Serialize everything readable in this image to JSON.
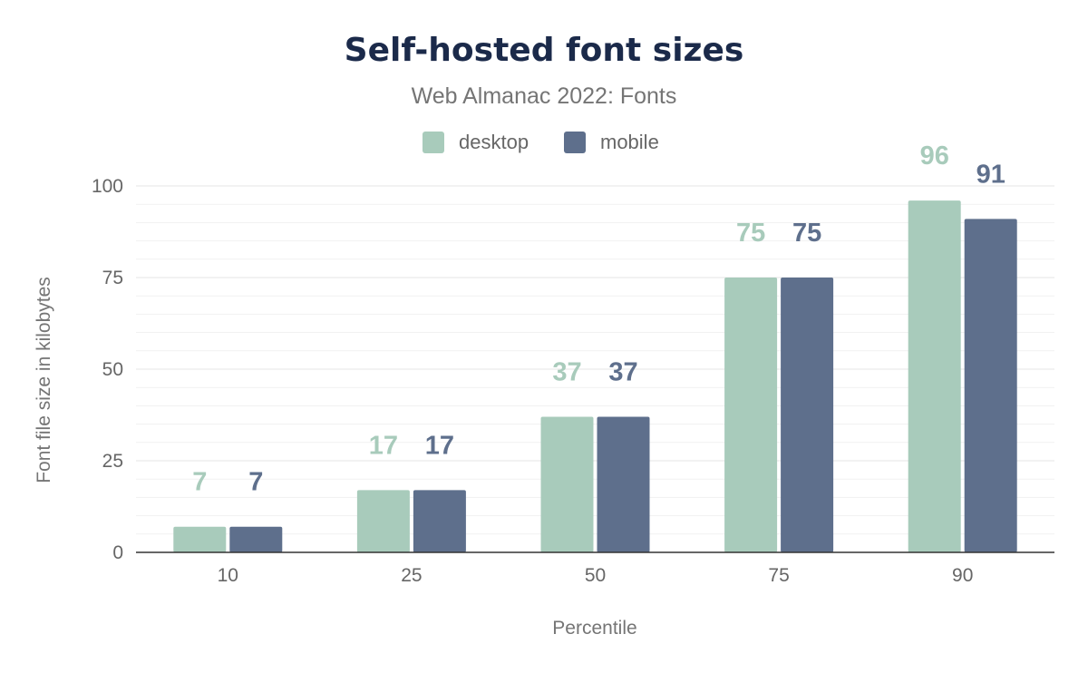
{
  "chart_data": {
    "type": "bar",
    "title": "Self-hosted font sizes",
    "subtitle": "Web Almanac 2022: Fonts",
    "xlabel": "Percentile",
    "ylabel": "Font file size in kilobytes",
    "categories": [
      "10",
      "25",
      "50",
      "75",
      "90"
    ],
    "series": [
      {
        "name": "desktop",
        "color": "#a8cbbb",
        "values": [
          7,
          17,
          37,
          75,
          96
        ],
        "labels": [
          "7",
          "17",
          "37",
          "75",
          "96"
        ]
      },
      {
        "name": "mobile",
        "color": "#5e6f8c",
        "values": [
          7,
          17,
          37,
          75,
          91
        ],
        "labels": [
          "7",
          "17",
          "37",
          "75",
          "91"
        ]
      }
    ],
    "ylim": [
      0,
      100
    ],
    "yticks": [
      "0",
      "25",
      "50",
      "75",
      "100"
    ],
    "grid": true,
    "legend": "top-center"
  }
}
